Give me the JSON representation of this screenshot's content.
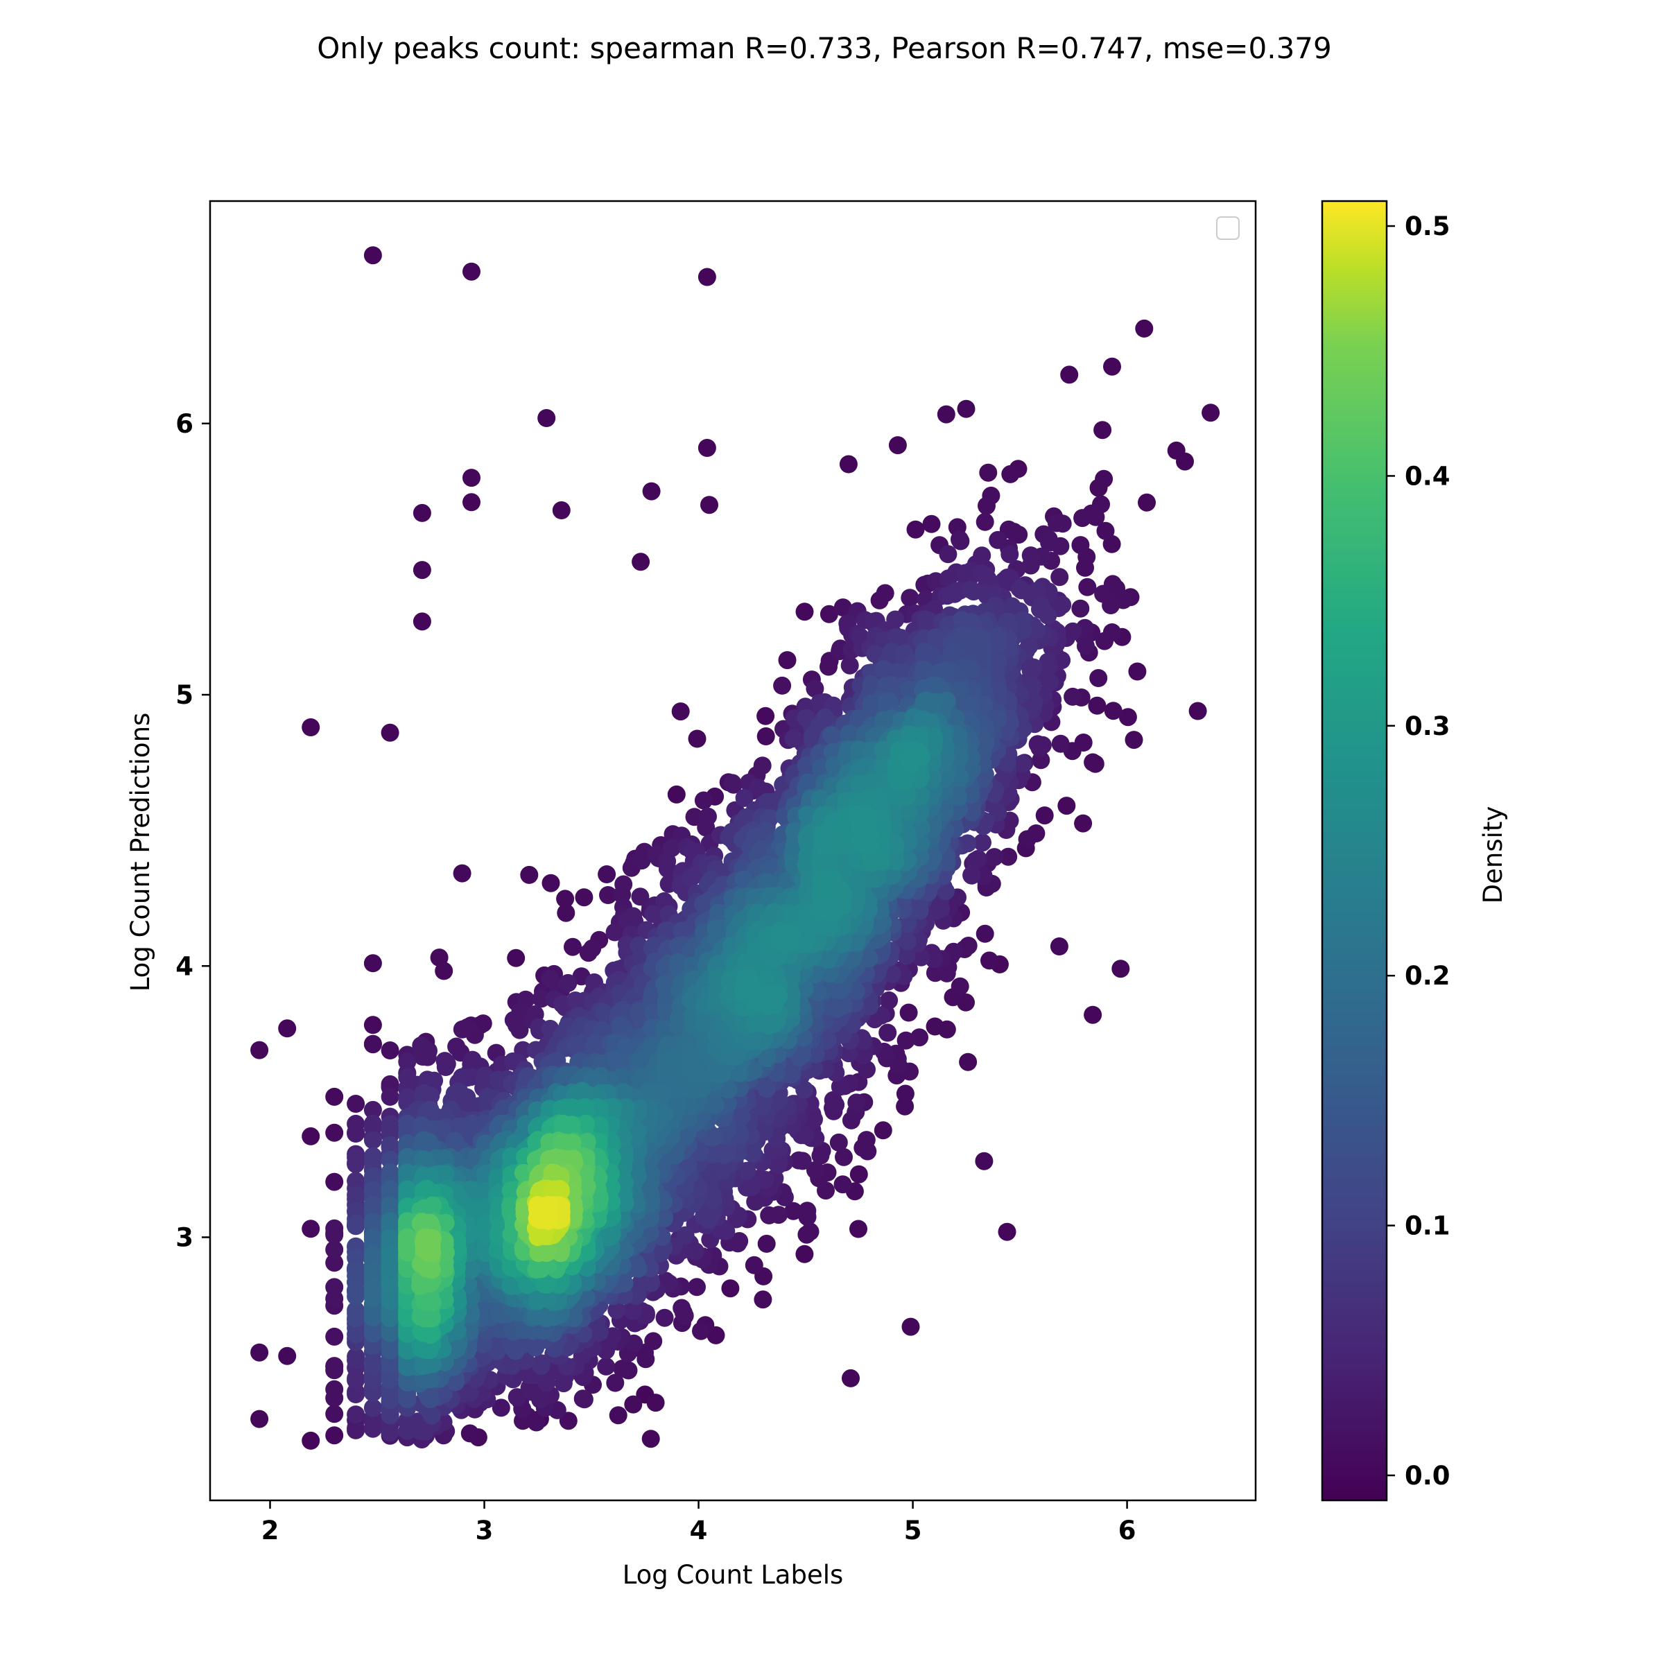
{
  "chart_data": {
    "type": "scatter",
    "title": "Only peaks count: spearman R=0.733, Pearson R=0.747, mse=0.379",
    "xlabel": "Log Count Labels",
    "ylabel": "Log Count Predictions",
    "xlim": [
      1.72,
      6.6
    ],
    "ylim": [
      2.03,
      6.82
    ],
    "xticks": [
      2,
      3,
      4,
      5,
      6
    ],
    "yticks": [
      3,
      4,
      5,
      6
    ],
    "xtick_labels": [
      "2",
      "3",
      "4",
      "5",
      "6"
    ],
    "ytick_labels": [
      "3",
      "4",
      "5",
      "6"
    ],
    "grid": false,
    "legend": {
      "placement": "upper-right",
      "entries": []
    },
    "point_color_by": "density",
    "colormap": "viridis",
    "colorbar": {
      "label": "Density",
      "range": [
        -0.01,
        0.51
      ],
      "ticks": [
        0.0,
        0.1,
        0.2,
        0.3,
        0.4,
        0.5
      ],
      "tick_labels": [
        "0.0",
        "0.1",
        "0.2",
        "0.3",
        "0.4",
        "0.5"
      ]
    },
    "cloud": {
      "points_estimated": 9000,
      "x_range": [
        1.95,
        6.4
      ],
      "y_range": [
        2.22,
        6.62
      ],
      "density_peaks": [
        {
          "x": 3.33,
          "y": 3.1,
          "density": 0.51
        },
        {
          "x": 2.72,
          "y": 2.85,
          "density": 0.46
        },
        {
          "x": 4.7,
          "y": 4.6,
          "density": 0.27
        }
      ]
    },
    "outliers": [
      {
        "x": 2.48,
        "y": 6.62
      },
      {
        "x": 2.94,
        "y": 6.56
      },
      {
        "x": 4.04,
        "y": 6.54
      },
      {
        "x": 3.29,
        "y": 6.02
      },
      {
        "x": 4.04,
        "y": 5.91
      },
      {
        "x": 2.94,
        "y": 5.8
      },
      {
        "x": 2.94,
        "y": 5.71
      },
      {
        "x": 3.36,
        "y": 5.68
      },
      {
        "x": 2.71,
        "y": 5.67
      },
      {
        "x": 3.78,
        "y": 5.75
      },
      {
        "x": 4.05,
        "y": 5.7
      },
      {
        "x": 2.71,
        "y": 5.46
      },
      {
        "x": 2.71,
        "y": 5.27
      },
      {
        "x": 3.73,
        "y": 5.49
      },
      {
        "x": 2.19,
        "y": 4.88
      },
      {
        "x": 2.56,
        "y": 4.86
      },
      {
        "x": 4.7,
        "y": 5.85
      },
      {
        "x": 4.93,
        "y": 5.92
      },
      {
        "x": 6.08,
        "y": 6.35
      },
      {
        "x": 6.39,
        "y": 6.04
      },
      {
        "x": 6.33,
        "y": 4.94
      },
      {
        "x": 5.97,
        "y": 3.99
      },
      {
        "x": 5.84,
        "y": 3.82
      },
      {
        "x": 5.44,
        "y": 3.02
      },
      {
        "x": 4.99,
        "y": 2.67
      },
      {
        "x": 4.71,
        "y": 2.48
      },
      {
        "x": 1.95,
        "y": 3.69
      },
      {
        "x": 2.08,
        "y": 3.77
      },
      {
        "x": 2.19,
        "y": 2.25
      },
      {
        "x": 1.95,
        "y": 2.33
      },
      {
        "x": 3.26,
        "y": 2.33
      },
      {
        "x": 3.75,
        "y": 2.42
      },
      {
        "x": 5.73,
        "y": 6.18
      },
      {
        "x": 5.93,
        "y": 6.21
      },
      {
        "x": 6.23,
        "y": 5.9
      },
      {
        "x": 6.27,
        "y": 5.86
      }
    ]
  }
}
